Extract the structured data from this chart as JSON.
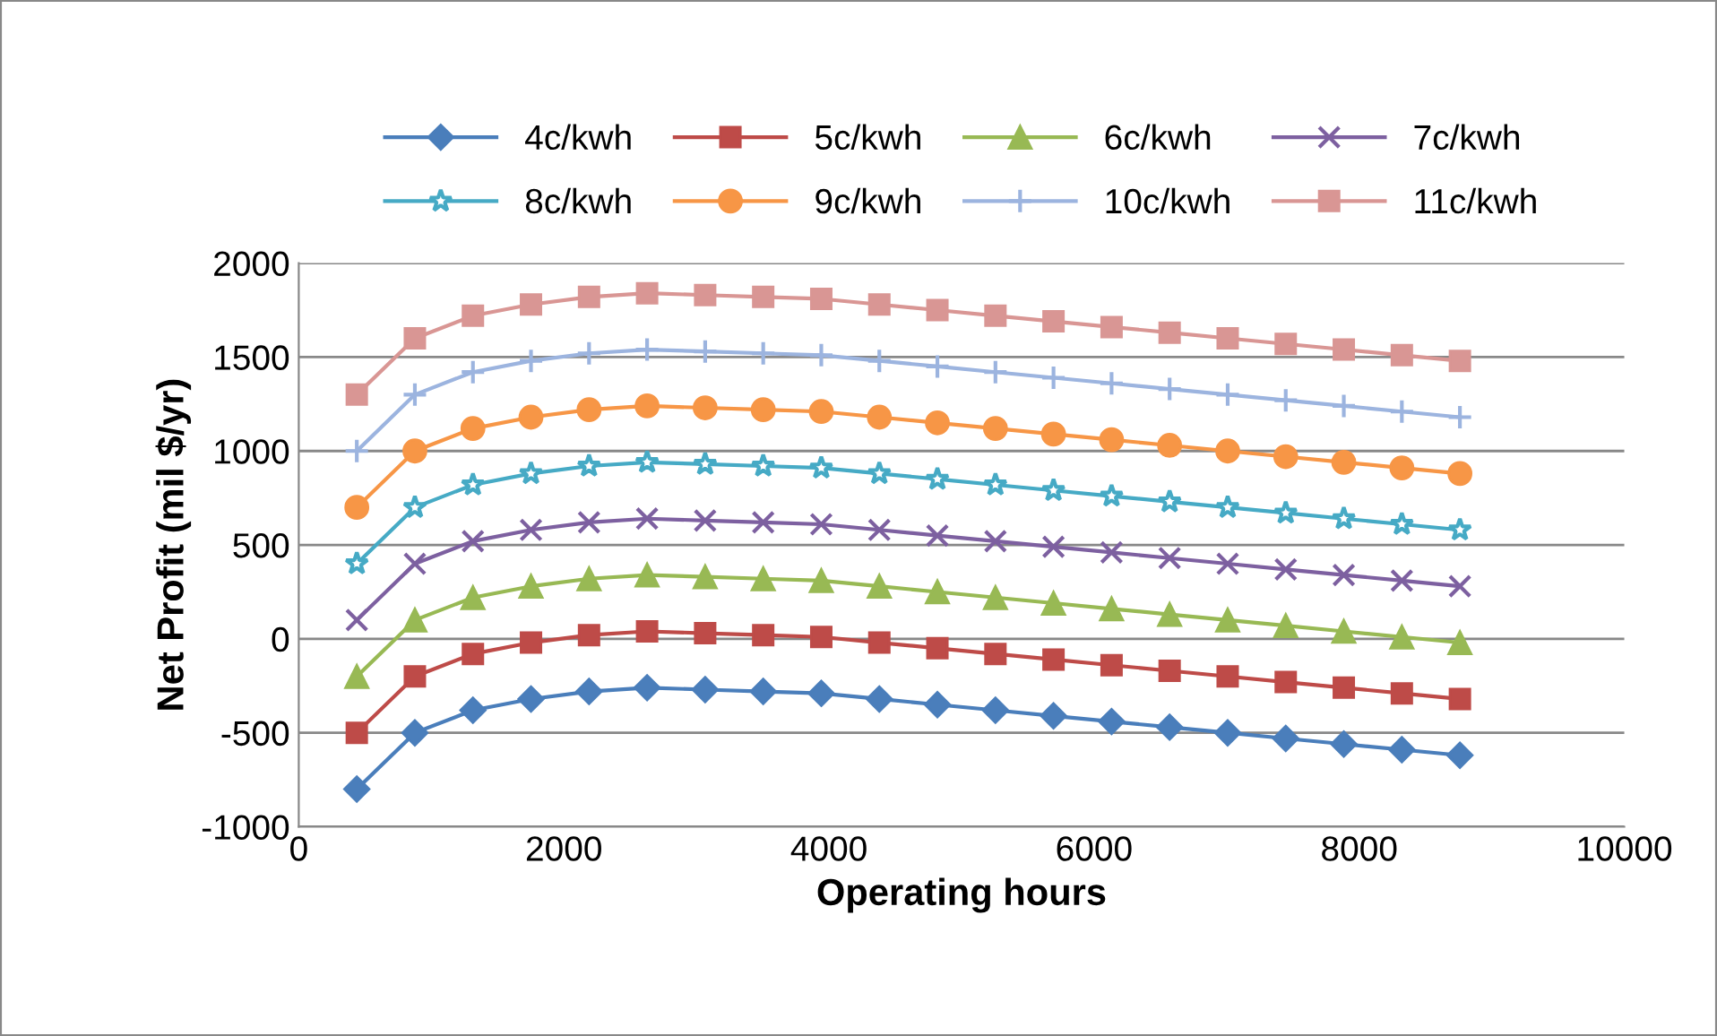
{
  "chart_data": {
    "type": "line",
    "xlabel": "Operating hours",
    "ylabel": "Net Profit (mil $/yr)",
    "x": [
      438,
      876,
      1314,
      1752,
      2190,
      2628,
      3066,
      3504,
      3942,
      4380,
      4818,
      5256,
      5694,
      6132,
      6570,
      7008,
      7446,
      7884,
      8322,
      8760
    ],
    "xlim": [
      0,
      10000
    ],
    "xticks": [
      0,
      2000,
      4000,
      6000,
      8000,
      10000
    ],
    "ylim": [
      -1000,
      2000
    ],
    "yticks": [
      -1000,
      -500,
      0,
      500,
      1000,
      1500,
      2000
    ],
    "grid": "y",
    "legend": "top",
    "series": [
      {
        "name": "4c/kwh",
        "color": "#4a7ebb",
        "marker": "diamond",
        "values": [
          -800,
          -500,
          -380,
          -320,
          -280,
          -260,
          -270,
          -280,
          -290,
          -320,
          -350,
          -380,
          -410,
          -440,
          -470,
          -500,
          -530,
          -560,
          -590,
          -620
        ]
      },
      {
        "name": "5c/kwh",
        "color": "#be4b48",
        "marker": "square",
        "values": [
          -500,
          -200,
          -80,
          -20,
          20,
          40,
          30,
          20,
          10,
          -20,
          -50,
          -80,
          -110,
          -140,
          -170,
          -200,
          -230,
          -260,
          -290,
          -320
        ]
      },
      {
        "name": "6c/kwh",
        "color": "#98b954",
        "marker": "triangle",
        "values": [
          -200,
          100,
          220,
          280,
          320,
          340,
          330,
          320,
          310,
          280,
          250,
          220,
          190,
          160,
          130,
          100,
          70,
          40,
          10,
          -20
        ]
      },
      {
        "name": "7c/kwh",
        "color": "#7d60a0",
        "marker": "cross",
        "values": [
          100,
          400,
          520,
          580,
          620,
          640,
          630,
          620,
          610,
          580,
          550,
          520,
          490,
          460,
          430,
          400,
          370,
          340,
          310,
          280
        ]
      },
      {
        "name": "8c/kwh",
        "color": "#46aac5",
        "marker": "star",
        "values": [
          400,
          700,
          820,
          880,
          920,
          940,
          930,
          920,
          910,
          880,
          850,
          820,
          790,
          760,
          730,
          700,
          670,
          640,
          610,
          580
        ]
      },
      {
        "name": "9c/kwh",
        "color": "#f79646",
        "marker": "circle",
        "values": [
          700,
          1000,
          1120,
          1180,
          1220,
          1240,
          1230,
          1220,
          1210,
          1180,
          1150,
          1120,
          1090,
          1060,
          1030,
          1000,
          970,
          940,
          910,
          880
        ]
      },
      {
        "name": "10c/kwh",
        "color": "#9cb4df",
        "marker": "plus",
        "values": [
          1000,
          1300,
          1420,
          1480,
          1520,
          1540,
          1530,
          1520,
          1510,
          1480,
          1450,
          1420,
          1390,
          1360,
          1330,
          1300,
          1270,
          1240,
          1210,
          1180
        ]
      },
      {
        "name": "11c/kwh",
        "color": "#d99694",
        "marker": "square",
        "values": [
          1300,
          1600,
          1720,
          1780,
          1820,
          1840,
          1830,
          1820,
          1810,
          1780,
          1750,
          1720,
          1690,
          1660,
          1630,
          1600,
          1570,
          1540,
          1510,
          1480
        ]
      }
    ]
  }
}
